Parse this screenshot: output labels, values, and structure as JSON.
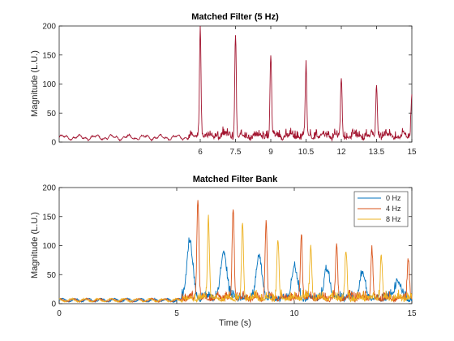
{
  "chart_data": [
    {
      "type": "line",
      "title": "Matched Filter (5 Hz)",
      "xlabel": "",
      "ylabel": "Magnitude (L.U.)",
      "xlim": [
        0,
        15
      ],
      "ylim": [
        0,
        200
      ],
      "xticks": [
        6,
        7.5,
        9,
        10.5,
        12,
        13.5,
        15
      ],
      "xtick_labels": [
        "6",
        "7.5",
        "9",
        "10.5",
        "12",
        "13.5",
        "15"
      ],
      "yticks": [
        0,
        50,
        100,
        150,
        200
      ],
      "ytick_labels": [
        "0",
        "50",
        "100",
        "150",
        "200"
      ],
      "grid": false,
      "series": [
        {
          "color": "#a2142f",
          "baseline": 8,
          "baseline_amplitude": 6,
          "noise_start": 5.5,
          "noise_amplitude": 16,
          "peaks": [
            {
              "x": 6.0,
              "y": 200
            },
            {
              "x": 7.5,
              "y": 178
            },
            {
              "x": 9.0,
              "y": 148
            },
            {
              "x": 10.5,
              "y": 128
            },
            {
              "x": 12.0,
              "y": 106
            },
            {
              "x": 13.5,
              "y": 97
            },
            {
              "x": 15.0,
              "y": 85
            }
          ]
        }
      ]
    },
    {
      "type": "line",
      "title": "Matched Filter Bank",
      "xlabel": "Time (s)",
      "ylabel": "Magnitude (L.U.)",
      "xlim": [
        0,
        15
      ],
      "ylim": [
        0,
        200
      ],
      "xticks": [
        0,
        5,
        10,
        15
      ],
      "xtick_labels": [
        "0",
        "5",
        "10",
        "15"
      ],
      "yticks": [
        0,
        50,
        100,
        150,
        200
      ],
      "ytick_labels": [
        "0",
        "50",
        "100",
        "150",
        "200"
      ],
      "grid": false,
      "legend": "top-right",
      "series": [
        {
          "name": "0 Hz",
          "color": "#0072bd",
          "peaks": [
            {
              "x": 5.55,
              "y": 105
            },
            {
              "x": 7.0,
              "y": 88
            },
            {
              "x": 8.5,
              "y": 77
            },
            {
              "x": 10.0,
              "y": 60
            },
            {
              "x": 11.4,
              "y": 55
            },
            {
              "x": 12.9,
              "y": 48
            },
            {
              "x": 14.4,
              "y": 37
            }
          ]
        },
        {
          "name": "4 Hz",
          "color": "#d95319",
          "peaks": [
            {
              "x": 5.9,
              "y": 180
            },
            {
              "x": 7.4,
              "y": 162
            },
            {
              "x": 8.8,
              "y": 135
            },
            {
              "x": 10.3,
              "y": 115
            },
            {
              "x": 11.8,
              "y": 97
            },
            {
              "x": 13.3,
              "y": 88
            },
            {
              "x": 14.85,
              "y": 75
            }
          ]
        },
        {
          "name": "8 Hz",
          "color": "#edb120",
          "peaks": [
            {
              "x": 6.35,
              "y": 142
            },
            {
              "x": 7.8,
              "y": 125
            },
            {
              "x": 9.3,
              "y": 108
            },
            {
              "x": 10.7,
              "y": 96
            },
            {
              "x": 12.2,
              "y": 87
            },
            {
              "x": 13.7,
              "y": 78
            }
          ]
        }
      ]
    }
  ]
}
